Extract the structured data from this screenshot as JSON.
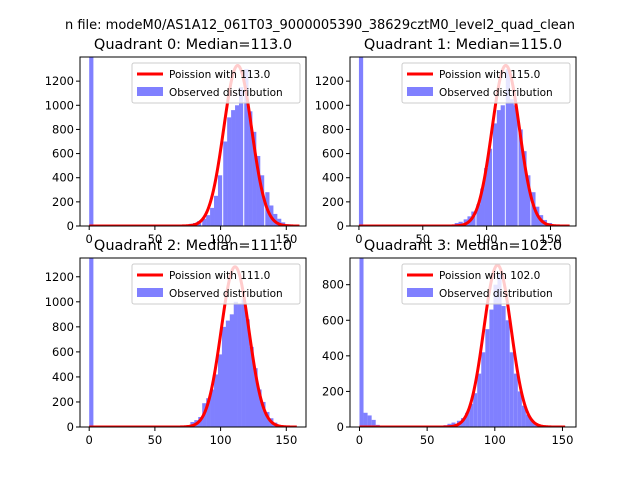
{
  "figure": {
    "suptitle": "n file: modeM0/AS1A12_061T03_9000005390_38629cztM0_level2_quad_clean"
  },
  "colors": {
    "fit_line": "#ff0000",
    "histogram": "#8080ff"
  },
  "chart_data": [
    {
      "type": "bar",
      "title": "Quadrant 0: Median=113.0",
      "xlim": [
        -7,
        165
      ],
      "ylim": [
        0,
        1400
      ],
      "xticks": [
        0,
        50,
        100,
        150
      ],
      "yticks": [
        0,
        200,
        400,
        600,
        800,
        1000,
        1200
      ],
      "legend_position": "top-right",
      "legend": [
        "Poission with 113.0",
        "Observed distribution"
      ],
      "poisson_mean": 113.0,
      "poisson_peak": 1330,
      "poisson_xmax": 160,
      "histogram": {
        "name": "Observed distribution",
        "bin_width": 3.2,
        "bins": [
          [
            0,
            1400
          ],
          [
            3,
            10
          ],
          [
            70,
            8
          ],
          [
            76,
            18
          ],
          [
            79,
            25
          ],
          [
            82,
            40
          ],
          [
            86,
            60
          ],
          [
            89,
            90
          ],
          [
            92,
            150
          ],
          [
            95,
            250
          ],
          [
            98,
            420
          ],
          [
            102,
            700
          ],
          [
            105,
            900
          ],
          [
            108,
            960
          ],
          [
            111,
            1000
          ],
          [
            114,
            1150
          ],
          [
            118,
            1300
          ],
          [
            121,
            950
          ],
          [
            124,
            780
          ],
          [
            127,
            580
          ],
          [
            130,
            420
          ],
          [
            134,
            280
          ],
          [
            137,
            170
          ],
          [
            140,
            100
          ],
          [
            143,
            60
          ],
          [
            146,
            30
          ],
          [
            150,
            15
          ],
          [
            153,
            6
          ]
        ]
      }
    },
    {
      "type": "bar",
      "title": "Quadrant 1: Median=115.0",
      "xlim": [
        -7,
        170
      ],
      "ylim": [
        0,
        1400
      ],
      "xticks": [
        0,
        50,
        100,
        150
      ],
      "yticks": [
        0,
        200,
        400,
        600,
        800,
        1000,
        1200
      ],
      "legend_position": "top-right",
      "legend": [
        "Poission with 115.0",
        "Observed distribution"
      ],
      "poisson_mean": 115.0,
      "poisson_peak": 1330,
      "poisson_xmax": 165,
      "histogram": {
        "name": "Observed distribution",
        "bin_width": 3.3,
        "bins": [
          [
            0,
            1400
          ],
          [
            3,
            8
          ],
          [
            68,
            10
          ],
          [
            75,
            25
          ],
          [
            78,
            35
          ],
          [
            82,
            55
          ],
          [
            85,
            80
          ],
          [
            88,
            120
          ],
          [
            92,
            180
          ],
          [
            95,
            310
          ],
          [
            98,
            480
          ],
          [
            101,
            640
          ],
          [
            105,
            850
          ],
          [
            108,
            960
          ],
          [
            111,
            1000
          ],
          [
            115,
            1300
          ],
          [
            118,
            1050
          ],
          [
            121,
            1000
          ],
          [
            125,
            800
          ],
          [
            128,
            620
          ],
          [
            131,
            420
          ],
          [
            135,
            280
          ],
          [
            138,
            160
          ],
          [
            141,
            90
          ],
          [
            144,
            50
          ],
          [
            148,
            25
          ],
          [
            151,
            12
          ],
          [
            155,
            5
          ]
        ]
      }
    },
    {
      "type": "bar",
      "title": "Quadrant 2: Median=111.0",
      "xlim": [
        -7,
        165
      ],
      "ylim": [
        0,
        1350
      ],
      "xticks": [
        0,
        50,
        100,
        150
      ],
      "yticks": [
        0,
        200,
        400,
        600,
        800,
        1000,
        1200
      ],
      "legend_position": "top-right",
      "legend": [
        "Poission with 111.0",
        "Observed distribution"
      ],
      "poisson_mean": 111.0,
      "poisson_peak": 1280,
      "poisson_xmax": 158,
      "histogram": {
        "name": "Observed distribution",
        "bin_width": 3.2,
        "bins": [
          [
            0,
            1350
          ],
          [
            3,
            8
          ],
          [
            70,
            10
          ],
          [
            77,
            40
          ],
          [
            80,
            55
          ],
          [
            83,
            80
          ],
          [
            86,
            190
          ],
          [
            89,
            230
          ],
          [
            92,
            300
          ],
          [
            95,
            420
          ],
          [
            98,
            580
          ],
          [
            101,
            800
          ],
          [
            104,
            850
          ],
          [
            107,
            900
          ],
          [
            110,
            1000
          ],
          [
            113,
            980
          ],
          [
            116,
            1020
          ],
          [
            119,
            860
          ],
          [
            122,
            640
          ],
          [
            125,
            470
          ],
          [
            128,
            300
          ],
          [
            131,
            200
          ],
          [
            134,
            120
          ],
          [
            137,
            70
          ],
          [
            140,
            35
          ],
          [
            143,
            15
          ],
          [
            146,
            6
          ]
        ]
      }
    },
    {
      "type": "bar",
      "title": "Quadrant 3: Median=102.0",
      "xlim": [
        -7,
        160
      ],
      "ylim": [
        0,
        950
      ],
      "xticks": [
        0,
        50,
        100,
        150
      ],
      "yticks": [
        0,
        200,
        400,
        600,
        800
      ],
      "legend_position": "top-right",
      "legend": [
        "Poission with 102.0",
        "Observed distribution"
      ],
      "poisson_mean": 102.0,
      "poisson_peak": 910,
      "poisson_xmax": 152,
      "histogram": {
        "name": "Observed distribution",
        "bin_width": 3.0,
        "bins": [
          [
            0,
            950
          ],
          [
            3,
            80
          ],
          [
            6,
            65
          ],
          [
            9,
            40
          ],
          [
            12,
            12
          ],
          [
            55,
            5
          ],
          [
            62,
            10
          ],
          [
            65,
            18
          ],
          [
            68,
            25
          ],
          [
            72,
            35
          ],
          [
            75,
            50
          ],
          [
            78,
            80
          ],
          [
            81,
            130
          ],
          [
            84,
            190
          ],
          [
            87,
            300
          ],
          [
            90,
            420
          ],
          [
            93,
            550
          ],
          [
            96,
            660
          ],
          [
            99,
            800
          ],
          [
            102,
            860
          ],
          [
            105,
            680
          ],
          [
            108,
            600
          ],
          [
            111,
            420
          ],
          [
            114,
            300
          ],
          [
            117,
            200
          ],
          [
            120,
            120
          ],
          [
            123,
            70
          ],
          [
            126,
            40
          ],
          [
            129,
            20
          ],
          [
            132,
            8
          ]
        ]
      }
    }
  ]
}
